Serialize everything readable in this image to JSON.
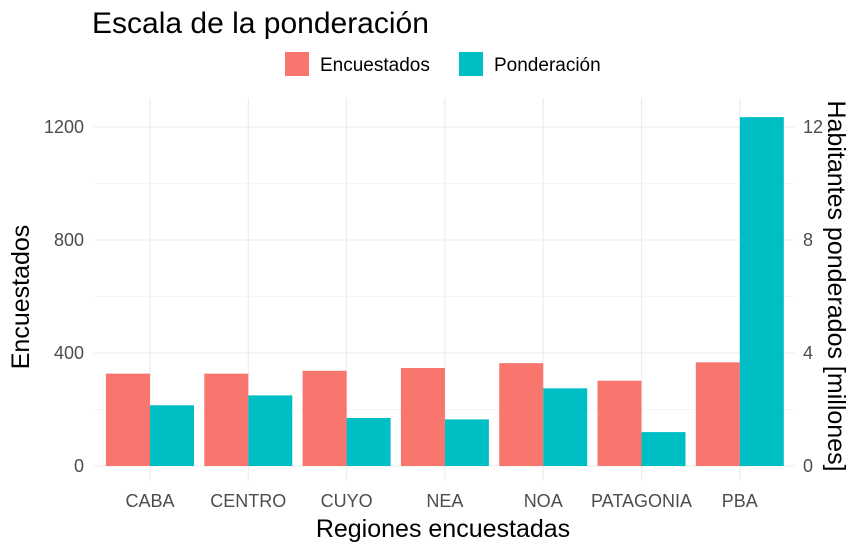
{
  "chart_data": {
    "type": "bar",
    "title": "Escala de la ponderación",
    "xlabel": "Regiones encuestadas",
    "ylabel": "Encuestados",
    "y2label": "Habitantes ponderados [millones]",
    "categories": [
      "CABA",
      "CENTRO",
      "CUYO",
      "NEA",
      "NOA",
      "PATAGONIA",
      "PBA"
    ],
    "ylim": [
      0,
      1300
    ],
    "y_ticks": [
      0,
      400,
      800,
      1200
    ],
    "y2lim": [
      0,
      13
    ],
    "y2_ticks": [
      0,
      4,
      8,
      12
    ],
    "grid": true,
    "legend_position": "top",
    "series": [
      {
        "name": "Encuestados",
        "color": "#F8766D",
        "axis": "left",
        "values": [
          327,
          327,
          337,
          347,
          364,
          302,
          367
        ]
      },
      {
        "name": "Ponderación",
        "color": "#00BFC4",
        "axis": "right",
        "values": [
          2.15,
          2.5,
          1.7,
          1.65,
          2.75,
          1.2,
          12.35
        ]
      }
    ]
  }
}
